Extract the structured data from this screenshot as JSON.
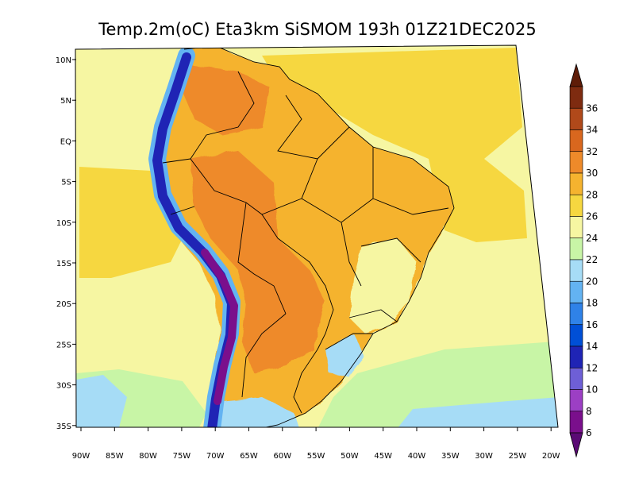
{
  "title": "Temp.2m(oC) Eta3km SiSMOM 193h 01Z21DEC2025",
  "lat_labels": [
    "10N",
    "5N",
    "EQ",
    "5S",
    "10S",
    "15S",
    "20S",
    "25S",
    "30S",
    "35S"
  ],
  "lon_labels": [
    "90W",
    "85W",
    "80W",
    "75W",
    "70W",
    "65W",
    "60W",
    "55W",
    "50W",
    "45W",
    "40W",
    "35W",
    "30W",
    "25W",
    "20W"
  ],
  "colorbar": {
    "labels": [
      "6",
      "8",
      "10",
      "12",
      "14",
      "16",
      "18",
      "20",
      "22",
      "24",
      "26",
      "28",
      "30",
      "32",
      "34",
      "36"
    ],
    "colors": [
      "#7a0f8c",
      "#9c3fc4",
      "#6e5fd6",
      "#1f24b5",
      "#004fd6",
      "#2f82e8",
      "#63b3f2",
      "#a6dcf6",
      "#c8f5a6",
      "#f6f6a2",
      "#f6d740",
      "#f5b32f",
      "#ee8a2a",
      "#d9671e",
      "#b0491a",
      "#7e2b10"
    ],
    "under_color": "#5a0a74",
    "over_color": "#5e1c08"
  },
  "palette": {
    "ocean_warm": "#f6d740",
    "ocean_mid": "#f6f6a2",
    "ocean_cool": "#c8f5a6",
    "ocean_cold": "#a6dcf6",
    "land_base": "#f5b32f",
    "land_hot": "#ee8a2a",
    "andes_cold": "#1f24b5",
    "andes_coldest": "#7a0f8c",
    "andes_mid": "#63b3f2",
    "border": "#000000"
  }
}
